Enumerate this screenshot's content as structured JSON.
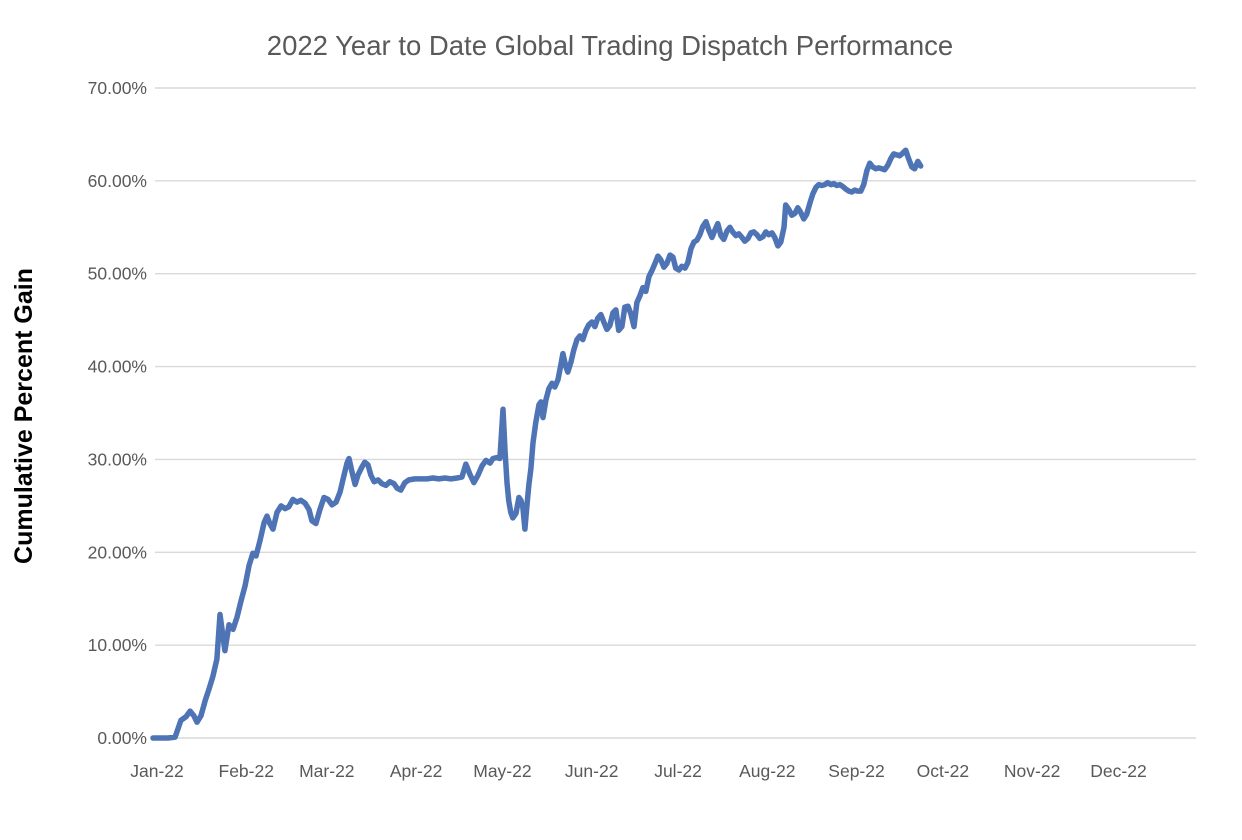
{
  "title": "2022 Year to Date Global Trading Dispatch Performance",
  "y_axis_title": "Cumulative Percent Gain",
  "colors": {
    "background": "#FFFFFF",
    "title_text": "#595959",
    "axis_label_text": "#595959",
    "y_axis_title_text": "#000000",
    "gridline": "#D9D9D9",
    "series_line": "#4E74B5"
  },
  "chart_data": {
    "type": "line",
    "title": "2022 Year to Date Global Trading Dispatch Performance",
    "xlabel": "",
    "ylabel": "Cumulative Percent Gain",
    "ylim": [
      0,
      70
    ],
    "grid": "horizontal",
    "legend": "none",
    "y_ticks": [
      {
        "value": 0,
        "label": "0.00%"
      },
      {
        "value": 10,
        "label": "10.00%"
      },
      {
        "value": 20,
        "label": "20.00%"
      },
      {
        "value": 30,
        "label": "30.00%"
      },
      {
        "value": 40,
        "label": "40.00%"
      },
      {
        "value": 50,
        "label": "50.00%"
      },
      {
        "value": 60,
        "label": "60.00%"
      },
      {
        "value": 70,
        "label": "70.00%"
      }
    ],
    "x_ticks": [
      {
        "day": 0,
        "label": "Jan-22"
      },
      {
        "day": 31,
        "label": "Feb-22"
      },
      {
        "day": 59,
        "label": "Mar-22"
      },
      {
        "day": 90,
        "label": "Apr-22"
      },
      {
        "day": 120,
        "label": "May-22"
      },
      {
        "day": 151,
        "label": "Jun-22"
      },
      {
        "day": 181,
        "label": "Jul-22"
      },
      {
        "day": 212,
        "label": "Aug-22"
      },
      {
        "day": 243,
        "label": "Sep-22"
      },
      {
        "day": 273,
        "label": "Oct-22"
      },
      {
        "day": 304,
        "label": "Nov-22"
      },
      {
        "day": 334,
        "label": "Dec-22"
      }
    ],
    "series": [
      {
        "name": "Cumulative Percent Gain",
        "x_unit": "day-of-year-2022",
        "y_unit": "percent",
        "points": [
          [
            -1.4,
            0.0
          ],
          [
            1.0,
            0.0
          ],
          [
            3.8,
            0.0
          ],
          [
            6.3,
            0.1
          ],
          [
            8.3,
            1.9
          ],
          [
            10.1,
            2.3
          ],
          [
            11.5,
            2.9
          ],
          [
            12.8,
            2.4
          ],
          [
            13.9,
            1.7
          ],
          [
            15.3,
            2.4
          ],
          [
            16.7,
            4.0
          ],
          [
            18.1,
            5.3
          ],
          [
            19.4,
            6.6
          ],
          [
            20.8,
            8.5
          ],
          [
            21.9,
            13.3
          ],
          [
            22.9,
            11.0
          ],
          [
            23.6,
            9.4
          ],
          [
            25.0,
            12.2
          ],
          [
            26.4,
            11.7
          ],
          [
            27.8,
            13.0
          ],
          [
            29.2,
            14.8
          ],
          [
            30.6,
            16.4
          ],
          [
            32.0,
            18.6
          ],
          [
            33.3,
            19.9
          ],
          [
            34.4,
            19.6
          ],
          [
            35.8,
            21.3
          ],
          [
            37.2,
            23.2
          ],
          [
            38.2,
            23.9
          ],
          [
            39.2,
            23.1
          ],
          [
            40.3,
            22.5
          ],
          [
            41.7,
            24.3
          ],
          [
            43.1,
            25.0
          ],
          [
            44.5,
            24.7
          ],
          [
            45.8,
            24.9
          ],
          [
            47.2,
            25.7
          ],
          [
            48.6,
            25.4
          ],
          [
            50.0,
            25.6
          ],
          [
            51.4,
            25.3
          ],
          [
            52.8,
            24.6
          ],
          [
            53.8,
            23.4
          ],
          [
            55.2,
            23.1
          ],
          [
            56.6,
            24.6
          ],
          [
            58.0,
            25.9
          ],
          [
            59.4,
            25.7
          ],
          [
            60.8,
            25.1
          ],
          [
            62.2,
            25.4
          ],
          [
            63.6,
            26.5
          ],
          [
            64.9,
            28.2
          ],
          [
            66.0,
            29.6
          ],
          [
            66.7,
            30.1
          ],
          [
            67.7,
            28.7
          ],
          [
            68.8,
            27.3
          ],
          [
            69.8,
            28.3
          ],
          [
            71.2,
            29.2
          ],
          [
            72.2,
            29.7
          ],
          [
            73.3,
            29.4
          ],
          [
            74.3,
            28.3
          ],
          [
            75.4,
            27.6
          ],
          [
            76.8,
            27.8
          ],
          [
            78.1,
            27.4
          ],
          [
            79.5,
            27.2
          ],
          [
            80.9,
            27.6
          ],
          [
            82.3,
            27.4
          ],
          [
            83.4,
            26.9
          ],
          [
            84.7,
            26.7
          ],
          [
            86.1,
            27.5
          ],
          [
            87.5,
            27.8
          ],
          [
            89.6,
            27.9
          ],
          [
            91.7,
            27.9
          ],
          [
            93.8,
            27.9
          ],
          [
            95.9,
            28.0
          ],
          [
            97.9,
            27.9
          ],
          [
            100.0,
            28.0
          ],
          [
            102.1,
            27.9
          ],
          [
            104.2,
            28.0
          ],
          [
            105.9,
            28.1
          ],
          [
            107.3,
            29.5
          ],
          [
            108.7,
            28.4
          ],
          [
            110.1,
            27.5
          ],
          [
            111.5,
            28.3
          ],
          [
            112.9,
            29.3
          ],
          [
            114.3,
            29.9
          ],
          [
            115.7,
            29.6
          ],
          [
            116.7,
            30.1
          ],
          [
            118.1,
            30.2
          ],
          [
            119.1,
            30.1
          ],
          [
            120.2,
            35.4
          ],
          [
            120.9,
            31.0
          ],
          [
            121.6,
            27.5
          ],
          [
            122.2,
            25.5
          ],
          [
            122.9,
            24.3
          ],
          [
            123.6,
            23.7
          ],
          [
            124.7,
            24.2
          ],
          [
            125.7,
            25.9
          ],
          [
            126.4,
            25.6
          ],
          [
            127.1,
            24.8
          ],
          [
            127.8,
            22.5
          ],
          [
            128.5,
            25.0
          ],
          [
            129.2,
            27.3
          ],
          [
            129.9,
            29.0
          ],
          [
            130.6,
            31.8
          ],
          [
            131.6,
            34.0
          ],
          [
            132.7,
            35.9
          ],
          [
            133.4,
            36.2
          ],
          [
            134.1,
            34.5
          ],
          [
            135.1,
            36.4
          ],
          [
            136.1,
            37.6
          ],
          [
            137.2,
            38.2
          ],
          [
            138.2,
            37.8
          ],
          [
            139.3,
            38.6
          ],
          [
            140.3,
            40.2
          ],
          [
            141.0,
            41.4
          ],
          [
            142.0,
            40.0
          ],
          [
            142.7,
            39.4
          ],
          [
            143.8,
            40.5
          ],
          [
            144.8,
            41.8
          ],
          [
            145.9,
            42.9
          ],
          [
            146.9,
            43.3
          ],
          [
            147.9,
            42.9
          ],
          [
            149.0,
            43.9
          ],
          [
            150.0,
            44.5
          ],
          [
            151.1,
            44.8
          ],
          [
            152.1,
            44.3
          ],
          [
            153.1,
            45.2
          ],
          [
            154.2,
            45.6
          ],
          [
            155.2,
            44.8
          ],
          [
            156.3,
            44.0
          ],
          [
            157.3,
            44.4
          ],
          [
            158.4,
            45.8
          ],
          [
            159.4,
            46.1
          ],
          [
            160.4,
            43.9
          ],
          [
            161.5,
            44.3
          ],
          [
            162.5,
            46.4
          ],
          [
            163.6,
            46.5
          ],
          [
            164.6,
            45.7
          ],
          [
            165.7,
            44.3
          ],
          [
            166.7,
            46.9
          ],
          [
            167.7,
            47.6
          ],
          [
            168.8,
            48.5
          ],
          [
            169.8,
            48.1
          ],
          [
            170.9,
            49.7
          ],
          [
            171.9,
            50.3
          ],
          [
            173.0,
            51.1
          ],
          [
            174.0,
            51.9
          ],
          [
            175.0,
            51.5
          ],
          [
            176.1,
            50.7
          ],
          [
            177.1,
            51.1
          ],
          [
            178.2,
            52.0
          ],
          [
            179.2,
            51.8
          ],
          [
            180.2,
            50.6
          ],
          [
            181.3,
            50.4
          ],
          [
            182.3,
            50.8
          ],
          [
            183.4,
            50.6
          ],
          [
            184.4,
            51.2
          ],
          [
            185.5,
            52.7
          ],
          [
            186.5,
            53.4
          ],
          [
            187.5,
            53.6
          ],
          [
            188.6,
            54.2
          ],
          [
            189.6,
            55.1
          ],
          [
            190.7,
            55.6
          ],
          [
            191.7,
            54.7
          ],
          [
            192.8,
            53.9
          ],
          [
            193.8,
            54.7
          ],
          [
            194.8,
            55.4
          ],
          [
            195.9,
            54.1
          ],
          [
            196.9,
            53.7
          ],
          [
            198.0,
            54.6
          ],
          [
            199.0,
            55.0
          ],
          [
            200.0,
            54.5
          ],
          [
            201.1,
            54.1
          ],
          [
            202.1,
            54.3
          ],
          [
            203.2,
            53.9
          ],
          [
            204.2,
            53.5
          ],
          [
            205.3,
            53.8
          ],
          [
            206.3,
            54.4
          ],
          [
            207.3,
            54.5
          ],
          [
            208.4,
            54.2
          ],
          [
            209.4,
            53.8
          ],
          [
            210.5,
            54.0
          ],
          [
            211.5,
            54.5
          ],
          [
            212.5,
            54.2
          ],
          [
            213.6,
            54.4
          ],
          [
            214.6,
            53.9
          ],
          [
            215.7,
            53.0
          ],
          [
            216.7,
            53.4
          ],
          [
            217.8,
            55.0
          ],
          [
            218.4,
            57.4
          ],
          [
            219.5,
            56.9
          ],
          [
            220.5,
            56.3
          ],
          [
            221.6,
            56.5
          ],
          [
            222.6,
            57.1
          ],
          [
            223.6,
            56.6
          ],
          [
            224.7,
            55.9
          ],
          [
            225.7,
            56.4
          ],
          [
            226.8,
            57.6
          ],
          [
            227.8,
            58.6
          ],
          [
            228.9,
            59.3
          ],
          [
            229.9,
            59.6
          ],
          [
            230.9,
            59.5
          ],
          [
            232.0,
            59.6
          ],
          [
            233.0,
            59.8
          ],
          [
            234.1,
            59.6
          ],
          [
            235.1,
            59.7
          ],
          [
            236.1,
            59.5
          ],
          [
            237.2,
            59.6
          ],
          [
            238.2,
            59.4
          ],
          [
            239.3,
            59.1
          ],
          [
            240.3,
            58.9
          ],
          [
            241.4,
            58.8
          ],
          [
            242.4,
            59.0
          ],
          [
            243.4,
            58.9
          ],
          [
            244.5,
            58.9
          ],
          [
            245.5,
            59.6
          ],
          [
            246.6,
            61.1
          ],
          [
            247.6,
            61.9
          ],
          [
            248.6,
            61.5
          ],
          [
            249.7,
            61.3
          ],
          [
            250.7,
            61.4
          ],
          [
            251.8,
            61.3
          ],
          [
            252.8,
            61.2
          ],
          [
            253.9,
            61.7
          ],
          [
            254.9,
            62.4
          ],
          [
            255.9,
            62.9
          ],
          [
            257.0,
            62.8
          ],
          [
            258.0,
            62.7
          ],
          [
            259.1,
            63.0
          ],
          [
            260.1,
            63.3
          ],
          [
            261.1,
            62.4
          ],
          [
            262.2,
            61.5
          ],
          [
            263.2,
            61.3
          ],
          [
            264.3,
            62.1
          ],
          [
            265.3,
            61.6
          ]
        ]
      }
    ]
  }
}
